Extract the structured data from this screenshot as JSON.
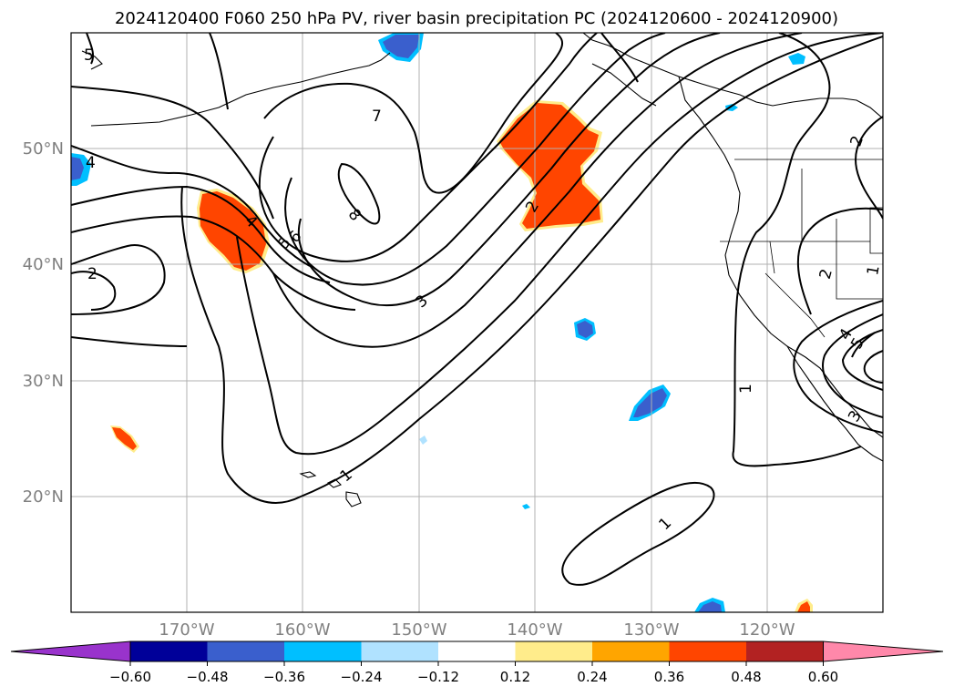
{
  "title": "2024120400 F060 250 hPa PV, river basin precipitation PC (2024120600 - 2024120900)",
  "lat_labels": [
    "50°N",
    "40°N",
    "30°N",
    "20°N"
  ],
  "lon_labels": [
    "170°W",
    "160°W",
    "150°W",
    "140°W",
    "130°W",
    "120°W"
  ],
  "colorbar": {
    "ticks": [
      "−0.60",
      "−0.48",
      "−0.36",
      "−0.24",
      "−0.12",
      "0.12",
      "0.24",
      "0.36",
      "0.48",
      "0.60"
    ],
    "colors": [
      "#9933cc",
      "#000099",
      "#3a5fcd",
      "#00bfff",
      "#b0e2ff",
      "#ffffff",
      "#ffec8b",
      "#ffa500",
      "#ff4500",
      "#b22222",
      "#ff88aa"
    ]
  },
  "contour_labels": {
    "c7": "7",
    "c8": "8",
    "c4a": "4",
    "c5": "5",
    "c6": "6",
    "c3a": "3",
    "c2a": "2",
    "c2b": "2",
    "c1a": "1",
    "c1b": "1",
    "c1c": "1",
    "c2c": "2",
    "c2d": "2",
    "c4b": "4",
    "c5b": "5",
    "c3b": "3",
    "c1d": "1",
    "c4c": "4",
    "c5c": "5"
  }
}
